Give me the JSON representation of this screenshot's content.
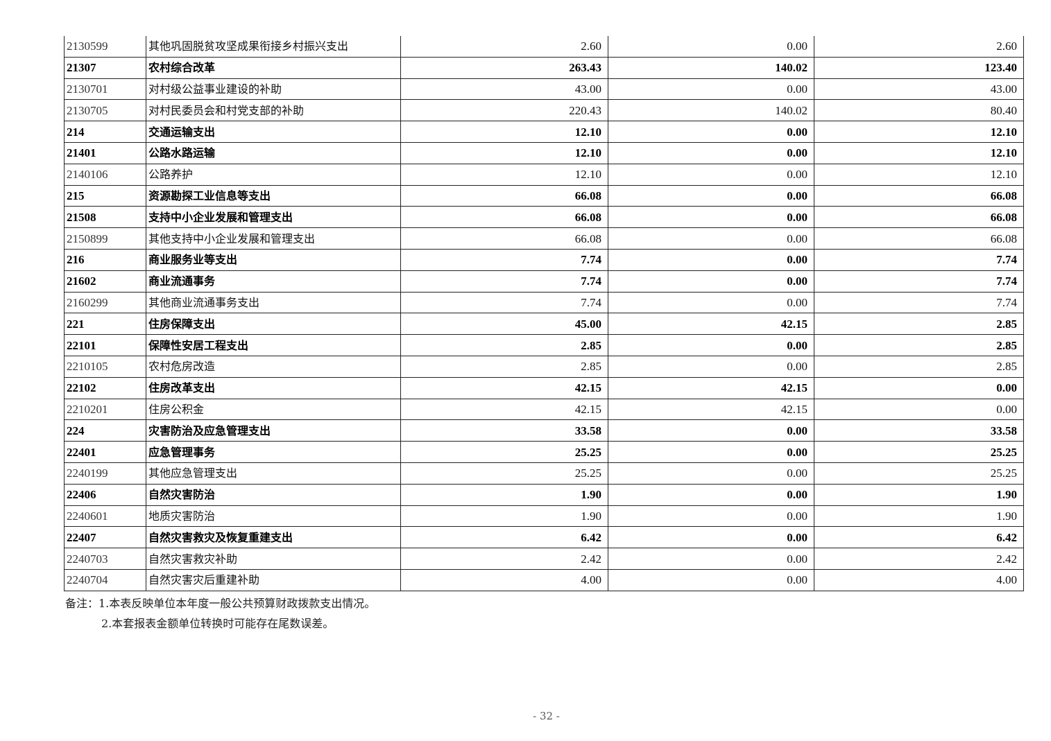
{
  "table": {
    "rows": [
      {
        "code": "2130599",
        "name": "其他巩固脱贫攻坚成果衔接乡村振兴支出",
        "total": "2.60",
        "basic": "0.00",
        "project": "2.60",
        "bold": false
      },
      {
        "code": "21307",
        "name": "农村综合改革",
        "total": "263.43",
        "basic": "140.02",
        "project": "123.40",
        "bold": true
      },
      {
        "code": "2130701",
        "name": "对村级公益事业建设的补助",
        "total": "43.00",
        "basic": "0.00",
        "project": "43.00",
        "bold": false
      },
      {
        "code": "2130705",
        "name": "对村民委员会和村党支部的补助",
        "total": "220.43",
        "basic": "140.02",
        "project": "80.40",
        "bold": false
      },
      {
        "code": "214",
        "name": "交通运输支出",
        "total": "12.10",
        "basic": "0.00",
        "project": "12.10",
        "bold": true
      },
      {
        "code": "21401",
        "name": "公路水路运输",
        "total": "12.10",
        "basic": "0.00",
        "project": "12.10",
        "bold": true
      },
      {
        "code": "2140106",
        "name": "公路养护",
        "total": "12.10",
        "basic": "0.00",
        "project": "12.10",
        "bold": false
      },
      {
        "code": "215",
        "name": "资源勘探工业信息等支出",
        "total": "66.08",
        "basic": "0.00",
        "project": "66.08",
        "bold": true
      },
      {
        "code": "21508",
        "name": "支持中小企业发展和管理支出",
        "total": "66.08",
        "basic": "0.00",
        "project": "66.08",
        "bold": true
      },
      {
        "code": "2150899",
        "name": "其他支持中小企业发展和管理支出",
        "total": "66.08",
        "basic": "0.00",
        "project": "66.08",
        "bold": false
      },
      {
        "code": "216",
        "name": "商业服务业等支出",
        "total": "7.74",
        "basic": "0.00",
        "project": "7.74",
        "bold": true
      },
      {
        "code": "21602",
        "name": "商业流通事务",
        "total": "7.74",
        "basic": "0.00",
        "project": "7.74",
        "bold": true
      },
      {
        "code": "2160299",
        "name": "其他商业流通事务支出",
        "total": "7.74",
        "basic": "0.00",
        "project": "7.74",
        "bold": false
      },
      {
        "code": "221",
        "name": "住房保障支出",
        "total": "45.00",
        "basic": "42.15",
        "project": "2.85",
        "bold": true
      },
      {
        "code": "22101",
        "name": "保障性安居工程支出",
        "total": "2.85",
        "basic": "0.00",
        "project": "2.85",
        "bold": true
      },
      {
        "code": "2210105",
        "name": "农村危房改造",
        "total": "2.85",
        "basic": "0.00",
        "project": "2.85",
        "bold": false
      },
      {
        "code": "22102",
        "name": "住房改革支出",
        "total": "42.15",
        "basic": "42.15",
        "project": "0.00",
        "bold": true
      },
      {
        "code": "2210201",
        "name": "住房公积金",
        "total": "42.15",
        "basic": "42.15",
        "project": "0.00",
        "bold": false
      },
      {
        "code": "224",
        "name": "灾害防治及应急管理支出",
        "total": "33.58",
        "basic": "0.00",
        "project": "33.58",
        "bold": true
      },
      {
        "code": "22401",
        "name": "应急管理事务",
        "total": "25.25",
        "basic": "0.00",
        "project": "25.25",
        "bold": true
      },
      {
        "code": "2240199",
        "name": "其他应急管理支出",
        "total": "25.25",
        "basic": "0.00",
        "project": "25.25",
        "bold": false
      },
      {
        "code": "22406",
        "name": "自然灾害防治",
        "total": "1.90",
        "basic": "0.00",
        "project": "1.90",
        "bold": true
      },
      {
        "code": "2240601",
        "name": "地质灾害防治",
        "total": "1.90",
        "basic": "0.00",
        "project": "1.90",
        "bold": false
      },
      {
        "code": "22407",
        "name": "自然灾害救灾及恢复重建支出",
        "total": "6.42",
        "basic": "0.00",
        "project": "6.42",
        "bold": true
      },
      {
        "code": "2240703",
        "name": "自然灾害救灾补助",
        "total": "2.42",
        "basic": "0.00",
        "project": "2.42",
        "bold": false
      },
      {
        "code": "2240704",
        "name": "自然灾害灾后重建补助",
        "total": "4.00",
        "basic": "0.00",
        "project": "4.00",
        "bold": false
      }
    ]
  },
  "notes": {
    "line1": "备注：1.本表反映单位本年度一般公共预算财政拨款支出情况。",
    "line2": "2.本套报表金额单位转换时可能存在尾数误差。"
  },
  "page_number": "- 32 -"
}
